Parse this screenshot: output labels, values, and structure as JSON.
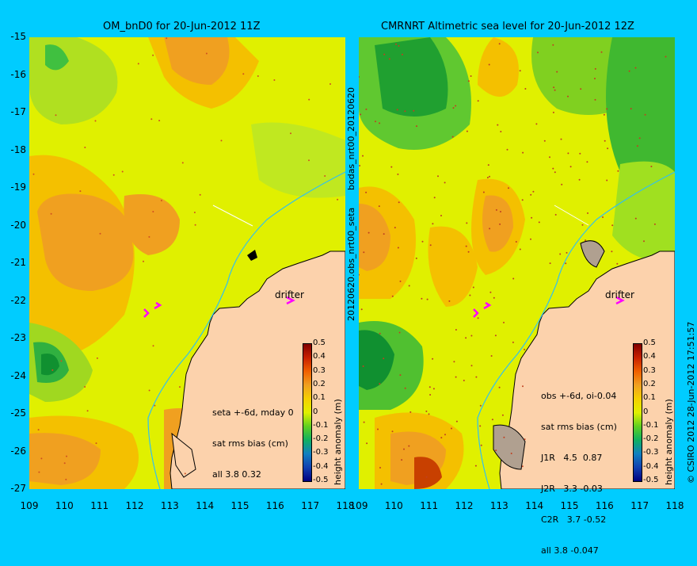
{
  "left_panel": {
    "title": "OM_bnD0 for 20-Jun-2012 11Z",
    "stats": [
      "seta +-6d, mday 0",
      "sat rms bias (cm)",
      "all 3.8 0.32"
    ],
    "drifter_label": "drifter",
    "colorbar_label": "height anomaly (m)"
  },
  "right_panel": {
    "title": "CMRNRT Altimetric sea level  for 20-Jun-2012 12Z",
    "stats": [
      "obs +-6d, oi-0.04",
      "sat rms bias (cm)",
      "J1R   4.5  0.87",
      "J2R   3.3 -0.03",
      "C2R   3.7 -0.52",
      "all 3.8 -0.047"
    ],
    "drifter_label": "drifter",
    "colorbar_label": "height anomaly (m)"
  },
  "side_labels": {
    "top": "bodas_nrt00_20120620",
    "bottom": "20120620.obs_nrt00_seta",
    "credit": "© CSIRO 2012    28-Jun-2012 17:51:57"
  },
  "axes": {
    "lat_ticks": [
      "-15",
      "-16",
      "-17",
      "-18",
      "-19",
      "-20",
      "-21",
      "-22",
      "-23",
      "-24",
      "-25",
      "-26",
      "-27"
    ],
    "lon_ticks": [
      "109",
      "110",
      "111",
      "112",
      "113",
      "114",
      "115",
      "116",
      "117",
      "118"
    ],
    "colorbar_ticks": [
      "0.5",
      "0.4",
      "0.3",
      "0.2",
      "0.1",
      "0",
      "-0.1",
      "-0.2",
      "-0.3",
      "-0.4",
      "-0.5"
    ]
  },
  "colors": {
    "background": "#00ccff",
    "land": "#fcd2ac",
    "sea_base": "#e0f000",
    "high": "#e88000",
    "low": "#10a030",
    "drifter": "#ff00ff"
  }
}
